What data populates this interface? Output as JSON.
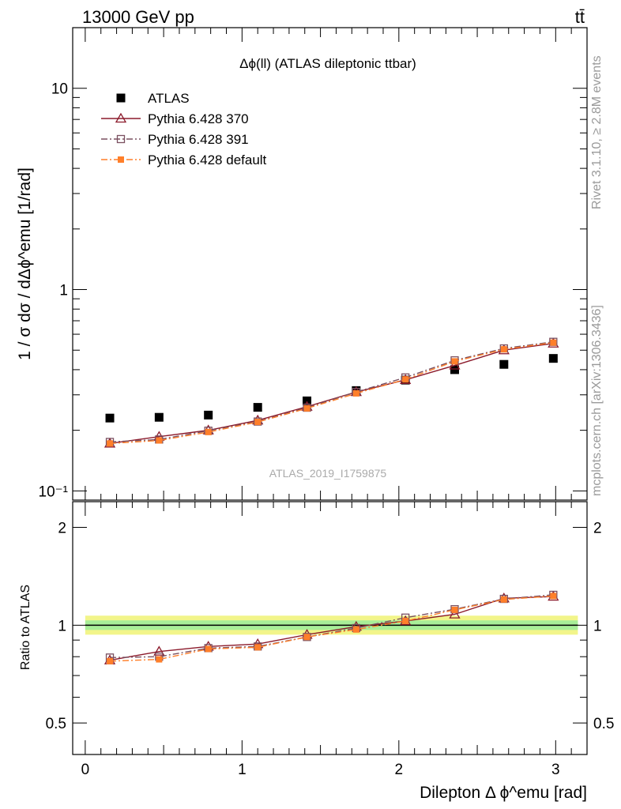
{
  "header": {
    "energy_label": "13000 GeV pp",
    "process_label": "tt̄"
  },
  "side_labels": {
    "rivet": "Rivet 3.1.10, ≥ 2.8M events",
    "mcplots": "mcplots.cern.ch [arXiv:1306.3436]"
  },
  "chart_data": [
    {
      "type": "scatter",
      "panel": "main",
      "title": "Δϕ(ll) (ATLAS dileptonic ttbar)",
      "watermark": "ATLAS_2019_I1759875",
      "ylabel": "1 / σ  dσ / dΔϕ^emu [1/rad]",
      "yscale": "log",
      "ylim": [
        0.09,
        20
      ],
      "xlim": [
        -0.08,
        3.2
      ],
      "ytick_labels": [
        "10⁻¹",
        "1",
        "10"
      ],
      "legend_position": "top-left",
      "x": [
        0.157,
        0.471,
        0.785,
        1.1,
        1.414,
        1.728,
        2.042,
        2.356,
        2.67,
        2.985
      ],
      "series": [
        {
          "name": "ATLAS",
          "color": "#000000",
          "marker": "square-filled",
          "line": "none",
          "values": [
            0.23,
            0.232,
            0.238,
            0.26,
            0.28,
            0.315,
            0.355,
            0.4,
            0.425,
            0.455
          ]
        },
        {
          "name": "Pythia 6.428 370",
          "color": "#8b1a2b",
          "marker": "triangle-open",
          "line": "solid",
          "values": [
            0.172,
            0.186,
            0.2,
            0.224,
            0.262,
            0.31,
            0.356,
            0.42,
            0.5,
            0.54
          ]
        },
        {
          "name": "Pythia 6.428 391",
          "color": "#7a5060",
          "marker": "square-open",
          "line": "dash-dot",
          "values": [
            0.175,
            0.18,
            0.199,
            0.221,
            0.259,
            0.31,
            0.366,
            0.445,
            0.51,
            0.55
          ]
        },
        {
          "name": "Pythia 6.428 default",
          "color": "#ff7f2a",
          "marker": "square-filled-small",
          "line": "dash-dot",
          "values": [
            0.172,
            0.178,
            0.196,
            0.22,
            0.257,
            0.305,
            0.358,
            0.44,
            0.505,
            0.545
          ]
        }
      ]
    },
    {
      "type": "line",
      "panel": "ratio",
      "ylabel": "Ratio to ATLAS",
      "xlabel": "Dilepton Δ ϕ^emu [rad]",
      "yscale": "log",
      "ylim": [
        0.4,
        2.4
      ],
      "xlim": [
        -0.08,
        3.2
      ],
      "ytick_labels": [
        "0.5",
        "1",
        "2"
      ],
      "xtick_labels": [
        "0",
        "1",
        "2",
        "3"
      ],
      "x": [
        0.157,
        0.471,
        0.785,
        1.1,
        1.414,
        1.728,
        2.042,
        2.356,
        2.67,
        2.985
      ],
      "series": [
        {
          "name": "Pythia 6.428 370",
          "values": [
            0.78,
            0.83,
            0.86,
            0.875,
            0.935,
            0.99,
            1.03,
            1.08,
            1.21,
            1.225
          ]
        },
        {
          "name": "Pythia 6.428 391",
          "values": [
            0.795,
            0.8,
            0.85,
            0.86,
            0.92,
            0.98,
            1.055,
            1.12,
            1.205,
            1.24
          ]
        },
        {
          "name": "Pythia 6.428 default",
          "values": [
            0.775,
            0.785,
            0.845,
            0.855,
            0.92,
            0.97,
            1.03,
            1.115,
            1.2,
            1.23
          ]
        }
      ]
    }
  ]
}
